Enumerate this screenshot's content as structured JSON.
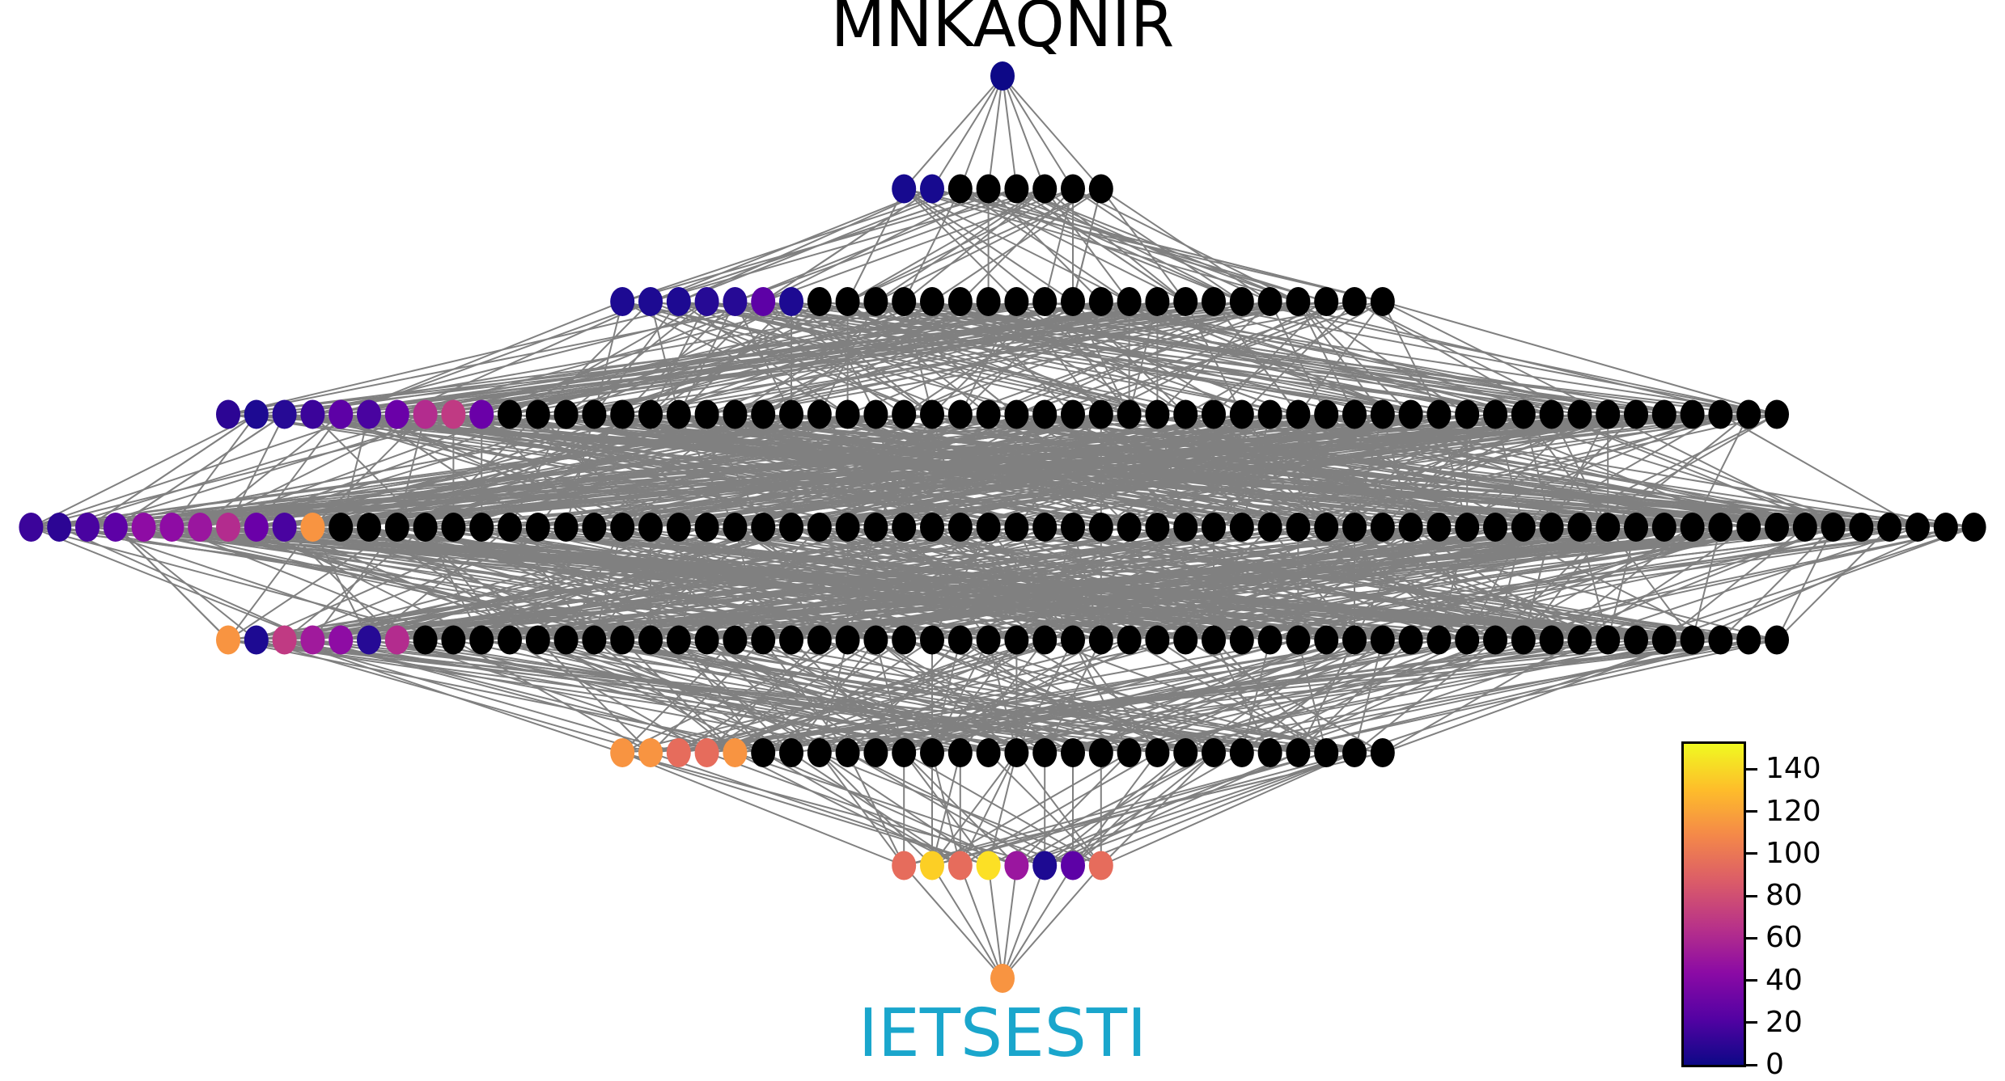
{
  "diagram": {
    "top_label": "MNKAQNIR",
    "bottom_label": "IETSESTI",
    "bottom_label_color": "#1aa6cc",
    "edge_color": "#808080",
    "unvisited_node_color": "#000000",
    "levels": [
      {
        "count": 1,
        "colored": [
          "#0d0887"
        ]
      },
      {
        "count": 8,
        "colored": [
          "#170a8f",
          "#170a8f"
        ]
      },
      {
        "count": 28,
        "colored": [
          "#1d0a92",
          "#1d0a92",
          "#1d0a92",
          "#260a95",
          "#260a95",
          "#5d01a6",
          "#1d0a92"
        ]
      },
      {
        "count": 56,
        "colored": [
          "#2c0594",
          "#1d0a92",
          "#260a95",
          "#3b049a",
          "#5d01a6",
          "#4903a0",
          "#6a00a8",
          "#b32c8e",
          "#c03a83",
          "#6a00a8"
        ]
      },
      {
        "count": 70,
        "colored": [
          "#3b049a",
          "#2c0594",
          "#4903a0",
          "#5d01a6",
          "#8e0ca4",
          "#8e0ca4",
          "#9a169f",
          "#b32c8e",
          "#6a00a8",
          "#4903a0",
          "#f89441"
        ]
      },
      {
        "count": 56,
        "colored": [
          "#f89441",
          "#1d0a92",
          "#c03a83",
          "#a01a9c",
          "#8e0ca4",
          "#260a95",
          "#b32c8e"
        ]
      },
      {
        "count": 28,
        "colored": [
          "#f89441",
          "#f89441",
          "#e66c5c",
          "#e66c5c",
          "#f89441"
        ]
      },
      {
        "count": 8,
        "colored": [
          "#e66c5c",
          "#fccf25",
          "#e66c5c",
          "#fce025",
          "#9a169f",
          "#1d0a92",
          "#5d01a6",
          "#e66c5c"
        ]
      },
      {
        "count": 1,
        "colored": [
          "#f89441"
        ]
      }
    ]
  },
  "colorbar": {
    "min": 0,
    "max": 152,
    "ticks": [
      "0",
      "20",
      "40",
      "60",
      "80",
      "100",
      "120",
      "140"
    ],
    "tick_values": [
      0,
      20,
      40,
      60,
      80,
      100,
      120,
      140
    ],
    "colormap": [
      "#0d0887",
      "#5302a3",
      "#8b0aa5",
      "#b83289",
      "#db5c68",
      "#f48849",
      "#febd2a",
      "#f0f921"
    ]
  }
}
